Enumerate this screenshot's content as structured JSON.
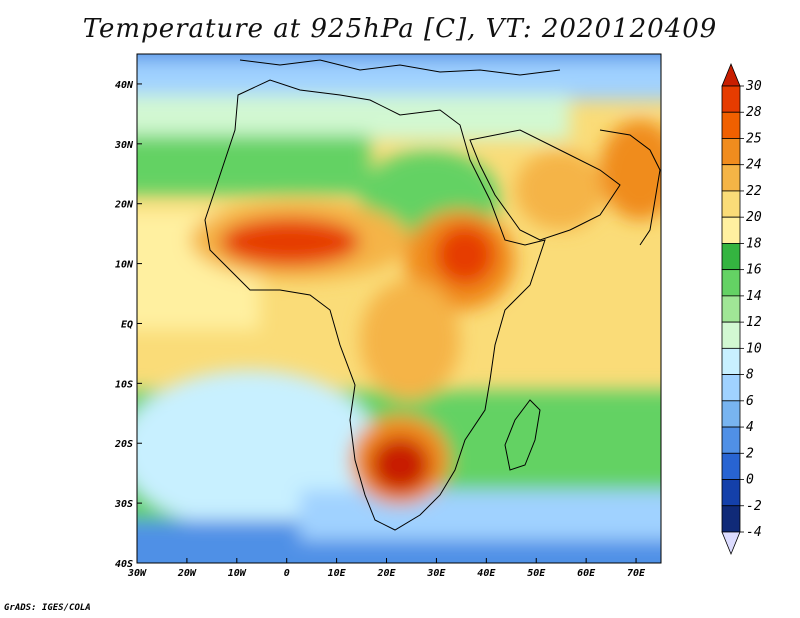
{
  "title": "Temperature at 925hPa [C], VT: 2020120409",
  "credit": "GrADS: IGES/COLA",
  "map": {
    "variable": "Temperature at 925hPa",
    "units": "C",
    "valid_time": "2020120409",
    "projection": "lat-lon",
    "lon_range": [
      -30,
      75
    ],
    "lat_range": [
      -40,
      45
    ],
    "lon_ticks": [
      "30W",
      "20W",
      "10W",
      "0",
      "10E",
      "20E",
      "30E",
      "40E",
      "50E",
      "60E",
      "70E"
    ],
    "lat_ticks": [
      "40N",
      "30N",
      "20N",
      "10N",
      "EQ",
      "10S",
      "20S",
      "30S",
      "40S"
    ]
  },
  "colorbar": {
    "levels": [
      "30",
      "28",
      "25",
      "24",
      "22",
      "20",
      "18",
      "16",
      "14",
      "12",
      "10",
      "8",
      "6",
      "4",
      "2",
      "0",
      "-2",
      "-4"
    ],
    "colors": [
      "#c81e00",
      "#e63c00",
      "#f06000",
      "#f08c1e",
      "#f5b446",
      "#fadc78",
      "#fff0a0",
      "#34b440",
      "#64d264",
      "#a0e696",
      "#d2f8d2",
      "#c8f0ff",
      "#a0d2ff",
      "#78b4f0",
      "#5090e6",
      "#2864d2",
      "#1440aa",
      "#102a78",
      "#dcdcff"
    ],
    "over_color": "#c81e00",
    "under_color": "#dcdcff"
  }
}
